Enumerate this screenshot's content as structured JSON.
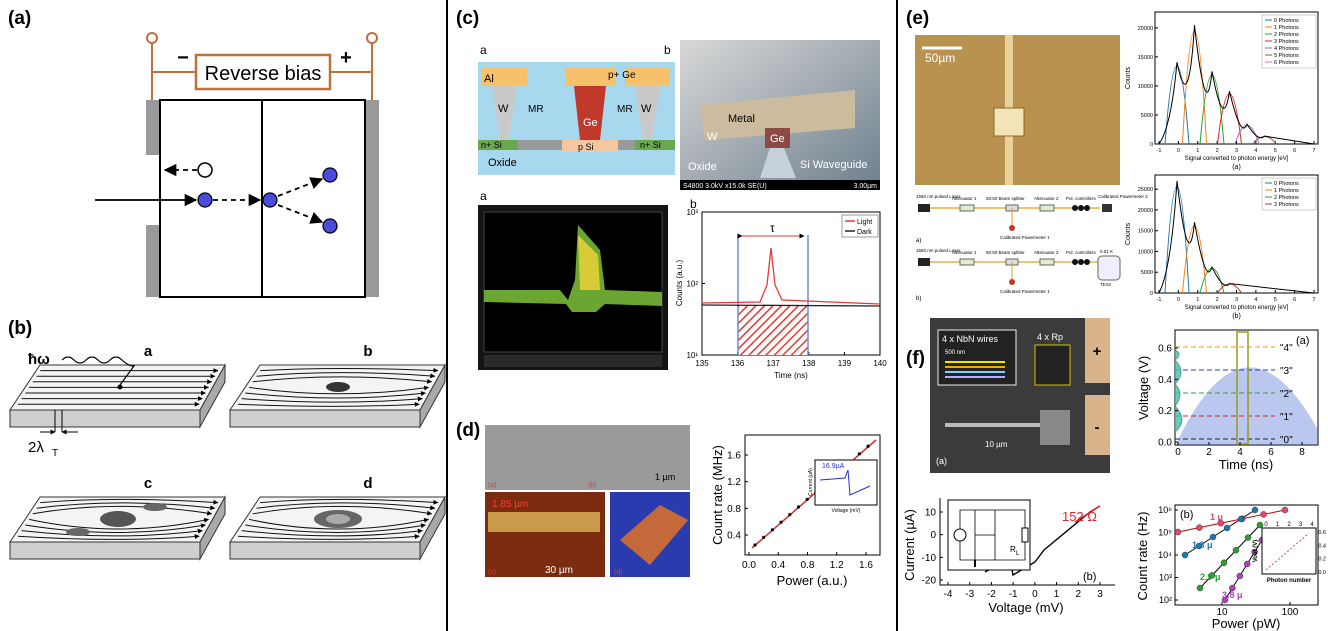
{
  "panel_a": {
    "label": "(a)",
    "bias": "Reverse bias",
    "minus": "−",
    "plus": "+"
  },
  "panel_b": {
    "label": "(b)",
    "photon": "ħω",
    "width": "2λ",
    "width_sub": "T",
    "subs": [
      "a",
      "b",
      "c",
      "d"
    ]
  },
  "panel_c": {
    "label": "(c)",
    "cross": {
      "a": "a",
      "b": "b",
      "labels": [
        "Al",
        "W",
        "MR",
        "p+ Ge",
        "Ge",
        "MR",
        "W",
        "n+ Si",
        "p Si",
        "n+ Si",
        "Oxide"
      ]
    },
    "sem": {
      "labels": [
        "Metal",
        "W",
        "Ge",
        "Oxide",
        "Si Waveguide"
      ],
      "footer": "S4800 3.0kV x15.0k SE(U)",
      "scale": "3.00µm"
    },
    "scope": {
      "label": "a"
    },
    "plot": {
      "label": "b",
      "tau": "τ",
      "legend": [
        "Light",
        "Dark"
      ],
      "xlabel": "Time (ns)",
      "ylabel": "Counts (a.u.)",
      "xticks": [
        "135",
        "136",
        "137",
        "138",
        "139",
        "140"
      ],
      "yticks": [
        "10¹",
        "10²",
        "10³"
      ]
    }
  },
  "panel_d": {
    "label": "(d)",
    "images": {
      "tags": [
        "(a)",
        "(b)",
        "(c)",
        "(d)"
      ],
      "scale": "1 µm",
      "width": "1.85 µm",
      "length": "30 µm"
    },
    "plot": {
      "xlabel": "Power (a.u.)",
      "ylabel": "Count rate (MHz)",
      "xticks": [
        "0.0",
        "0.4",
        "0.8",
        "1.2",
        "1.6"
      ],
      "yticks": [
        "0.4",
        "0.8",
        "1.2",
        "1.6"
      ],
      "inset": {
        "current": "16.9µA",
        "xlabel": "Voltage (mV)",
        "ylabel": "Current (µA)"
      }
    }
  },
  "panel_e": {
    "label": "(e)",
    "scale": "50µm",
    "hist1": {
      "legend": [
        "0 Photons",
        "1 Photons",
        "2 Photons",
        "3 Photons",
        "4 Photons",
        "5 Photons",
        "6 Photons"
      ],
      "ylabel": "Counts",
      "xlabel": "Signal converted to photon energy [eV]",
      "tag": "(a)",
      "xticks": [
        "-1",
        "0",
        "1",
        "2",
        "3",
        "4",
        "5",
        "6",
        "7"
      ],
      "yticks": [
        "0",
        "5000",
        "10000",
        "15000",
        "20000"
      ]
    },
    "hist2": {
      "legend": [
        "0 Photons",
        "1 Photons",
        "2 Photons",
        "3 Photons"
      ],
      "ylabel": "Counts",
      "xlabel": "Signal converted to photon energy [eV]",
      "tag": "(b)",
      "xticks": [
        "-1",
        "0",
        "1",
        "2",
        "3",
        "4",
        "5",
        "6",
        "7"
      ],
      "yticks": [
        "0",
        "5000",
        "10000",
        "15000",
        "20000",
        "25000"
      ]
    },
    "setup_a": {
      "tag": "a)",
      "labels": [
        "1550 nm pulsed Laser",
        "Attenuator 1",
        "50:50 Beam splitter",
        "Attenuator 2",
        "Pol. controllers",
        "Calibrated Powermeter 2",
        "Calibrated Powermeter 1"
      ]
    },
    "setup_b": {
      "tag": "b)",
      "labels": [
        "1550 nm pulsed Laser",
        "Attenuator 1",
        "50:50 Beam splitter",
        "Attenuator 2",
        "Pol. controllers",
        "0.01 K",
        "Calibrated Powermeter 1",
        "TESs"
      ]
    }
  },
  "panel_f": {
    "label": "(f)",
    "sem": {
      "wires": "4 x NbN wires",
      "rp": "4 x Rp",
      "scale_small": "500 nm",
      "tag": "(a)",
      "scale": "10 µm",
      "plus": "+",
      "minus": "-"
    },
    "volt": {
      "tag": "(a)",
      "levels": [
        "\"4\"",
        "\"3\"",
        "\"2\"",
        "\"1\"",
        "\"0\""
      ],
      "xlabel": "Time (ns)",
      "ylabel": "Voltage (V)",
      "xticks": [
        "0",
        "2",
        "4",
        "6",
        "8"
      ],
      "yticks": [
        "0.0",
        "0.2",
        "0.4",
        "0.6"
      ]
    },
    "iv": {
      "resistance": "152 Ω",
      "tag": "(b)",
      "xlabel": "Voltage (mV)",
      "ylabel": "Current (µA)",
      "xticks": [
        "-4",
        "-3",
        "-2",
        "-1",
        "0",
        "1",
        "2",
        "3"
      ],
      "yticks": [
        "-20",
        "-10",
        "0",
        "10"
      ],
      "rl": "R",
      "rl_sub": "L"
    },
    "count": {
      "tag": "(b)",
      "xlabel": "Power (pW)",
      "ylabel": "Count rate (Hz)",
      "mu": [
        "1 μ",
        "1.8 μ",
        "2.9 μ",
        "3.8 μ"
      ],
      "xticks": [
        "10",
        "100"
      ],
      "yticks": [
        "10²",
        "10³",
        "10⁴",
        "10⁵",
        "10⁶"
      ],
      "inset": {
        "xlabel": "Photon number",
        "ylabel": "Vout (V)",
        "xticks": [
          "0",
          "1",
          "2",
          "3",
          "4"
        ],
        "yticks": [
          "0.0",
          "0.2",
          "0.4",
          "0.6"
        ]
      }
    }
  }
}
